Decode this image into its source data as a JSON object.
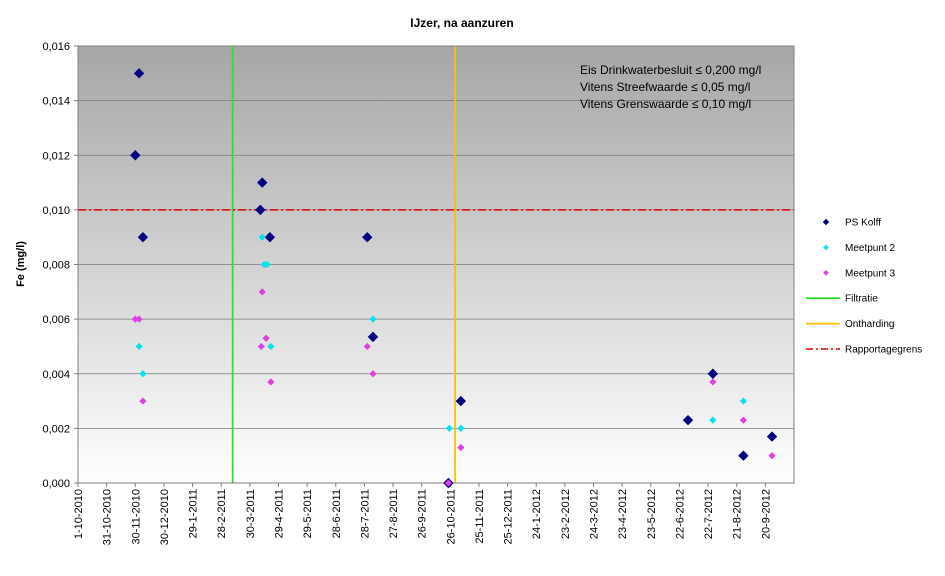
{
  "chart_data": {
    "type": "scatter",
    "title": "IJzer, na aanzuren",
    "ylabel": "Fe (mg/l)",
    "xlabel": "",
    "ylim": [
      0,
      0.016
    ],
    "y_ticks": [
      "0,000",
      "0,002",
      "0,004",
      "0,006",
      "0,008",
      "0,010",
      "0,012",
      "0,014",
      "0,016"
    ],
    "x_range": [
      "2010-10-01",
      "2012-10-20"
    ],
    "x_ticks": [
      {
        "date": "2010-10-01",
        "label": "1-10-2010"
      },
      {
        "date": "2010-10-31",
        "label": "31-10-2010"
      },
      {
        "date": "2010-11-30",
        "label": "30-11-2010"
      },
      {
        "date": "2010-12-30",
        "label": "30-12-2010"
      },
      {
        "date": "2011-01-29",
        "label": "29-1-2011"
      },
      {
        "date": "2011-02-28",
        "label": "28-2-2011"
      },
      {
        "date": "2011-03-30",
        "label": "30-3-2011"
      },
      {
        "date": "2011-04-29",
        "label": "29-4-2011"
      },
      {
        "date": "2011-05-29",
        "label": "29-5-2011"
      },
      {
        "date": "2011-06-28",
        "label": "28-6-2011"
      },
      {
        "date": "2011-07-28",
        "label": "28-7-2011"
      },
      {
        "date": "2011-08-27",
        "label": "27-8-2011"
      },
      {
        "date": "2011-09-26",
        "label": "26-9-2011"
      },
      {
        "date": "2011-10-26",
        "label": "26-10-2011"
      },
      {
        "date": "2011-11-25",
        "label": "25-11-2011"
      },
      {
        "date": "2011-12-25",
        "label": "25-12-2011"
      },
      {
        "date": "2012-01-24",
        "label": "24-1-2012"
      },
      {
        "date": "2012-02-23",
        "label": "23-2-2012"
      },
      {
        "date": "2012-03-24",
        "label": "24-3-2012"
      },
      {
        "date": "2012-04-23",
        "label": "23-4-2012"
      },
      {
        "date": "2012-05-23",
        "label": "23-5-2012"
      },
      {
        "date": "2012-06-22",
        "label": "22-6-2012"
      },
      {
        "date": "2012-07-22",
        "label": "22-7-2012"
      },
      {
        "date": "2012-08-21",
        "label": "21-8-2012"
      },
      {
        "date": "2012-09-20",
        "label": "20-9-2012"
      }
    ],
    "series": [
      {
        "name": "PS Kolff",
        "color": "#000080",
        "marker": "diamond-large",
        "points": [
          {
            "x": "2010-11-30",
            "y": 0.012
          },
          {
            "x": "2010-12-04",
            "y": 0.015
          },
          {
            "x": "2010-12-08",
            "y": 0.009
          },
          {
            "x": "2011-04-10",
            "y": 0.01
          },
          {
            "x": "2011-04-12",
            "y": 0.011
          },
          {
            "x": "2011-04-20",
            "y": 0.009
          },
          {
            "x": "2011-07-31",
            "y": 0.009
          },
          {
            "x": "2011-08-06",
            "y": 0.00535
          },
          {
            "x": "2011-10-24",
            "y": 0.0
          },
          {
            "x": "2011-11-06",
            "y": 0.003
          },
          {
            "x": "2012-07-01",
            "y": 0.0023
          },
          {
            "x": "2012-07-27",
            "y": 0.004
          },
          {
            "x": "2012-08-28",
            "y": 0.001
          },
          {
            "x": "2012-09-27",
            "y": 0.0017
          }
        ]
      },
      {
        "name": "Meetpunt 2",
        "color": "#00e5ee",
        "marker": "diamond-small",
        "points": [
          {
            "x": "2010-12-04",
            "y": 0.005
          },
          {
            "x": "2010-12-08",
            "y": 0.004
          },
          {
            "x": "2011-04-12",
            "y": 0.009
          },
          {
            "x": "2011-04-14",
            "y": 0.008
          },
          {
            "x": "2011-04-17",
            "y": 0.008
          },
          {
            "x": "2011-04-21",
            "y": 0.005
          },
          {
            "x": "2011-08-06",
            "y": 0.006
          },
          {
            "x": "2011-10-25",
            "y": 0.002
          },
          {
            "x": "2011-11-06",
            "y": 0.002
          },
          {
            "x": "2012-07-27",
            "y": 0.0023
          },
          {
            "x": "2012-08-28",
            "y": 0.003
          }
        ]
      },
      {
        "name": "Meetpunt 3",
        "color": "#e040e0",
        "marker": "diamond-small",
        "points": [
          {
            "x": "2010-11-30",
            "y": 0.006
          },
          {
            "x": "2010-12-04",
            "y": 0.006
          },
          {
            "x": "2010-12-08",
            "y": 0.003
          },
          {
            "x": "2011-04-11",
            "y": 0.005
          },
          {
            "x": "2011-04-12",
            "y": 0.007
          },
          {
            "x": "2011-04-16",
            "y": 0.0053
          },
          {
            "x": "2011-04-21",
            "y": 0.0037
          },
          {
            "x": "2011-07-31",
            "y": 0.005
          },
          {
            "x": "2011-08-06",
            "y": 0.004
          },
          {
            "x": "2011-10-24",
            "y": 0.0
          },
          {
            "x": "2011-11-06",
            "y": 0.0013
          },
          {
            "x": "2012-07-27",
            "y": 0.0037
          },
          {
            "x": "2012-08-28",
            "y": 0.0023
          },
          {
            "x": "2012-09-27",
            "y": 0.001
          }
        ]
      }
    ],
    "vertical_lines": [
      {
        "name": "Filtratie",
        "x": "2011-03-12",
        "color": "#33dd33",
        "style": "solid"
      },
      {
        "name": "Ontharding",
        "x": "2011-10-31",
        "color": "#ffbf00",
        "style": "solid"
      }
    ],
    "horizontal_lines": [
      {
        "name": "Rapportagegrens",
        "y": 0.01,
        "color": "#dd0000",
        "style": "dash-dot"
      }
    ],
    "annotations": [
      "Eis Drinkwaterbesluit ≤ 0,200  mg/l",
      "Vitens  Streefwaarde ≤ 0,05 mg/l",
      "Vitens Grenswaarde ≤ 0,10 mg/l"
    ],
    "legend": {
      "placement": "right",
      "entries": [
        "PS Kolff",
        "Meetpunt 2",
        "Meetpunt 3",
        "Filtratie",
        "Ontharding",
        "Rapportagegrens"
      ]
    },
    "background": "vertical-gradient-gray-to-white",
    "grid": "horizontal"
  }
}
